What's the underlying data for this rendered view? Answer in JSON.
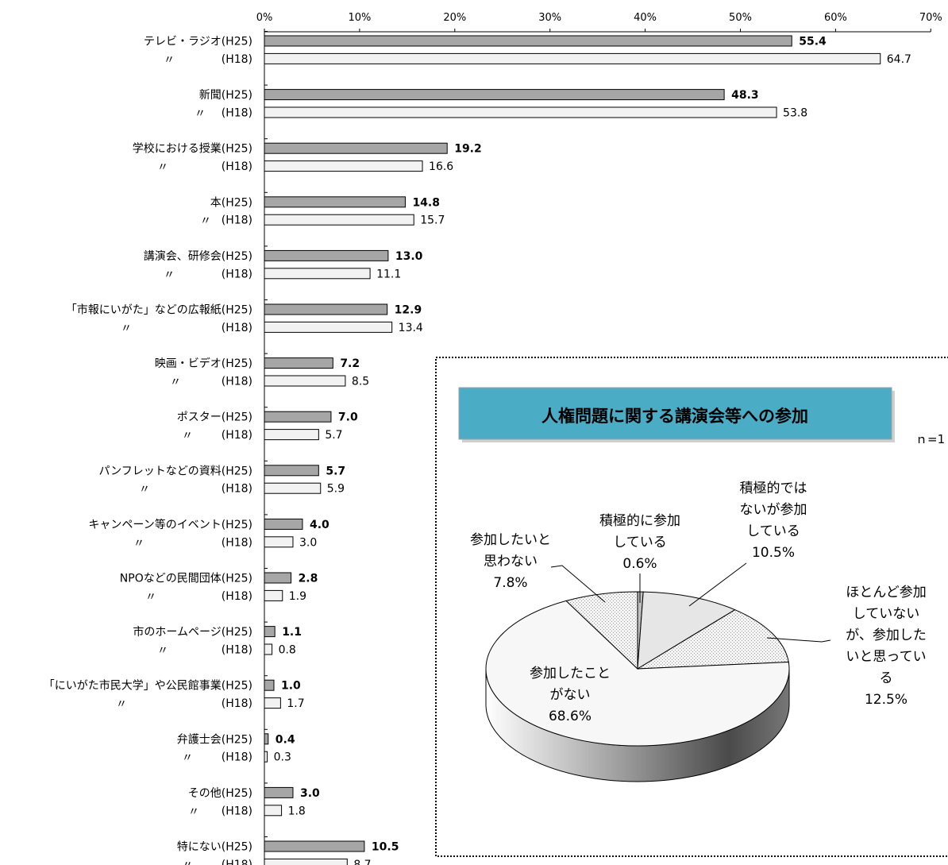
{
  "chart_data": [
    {
      "type": "bar",
      "orientation": "horizontal",
      "xlim": [
        0,
        70
      ],
      "x_ticks": [
        "0%",
        "10%",
        "20%",
        "30%",
        "40%",
        "50%",
        "60%",
        "70%"
      ],
      "grid": false,
      "categories": [
        "テレビ・ラジオ",
        "新聞",
        "学校における授業",
        "本",
        "講演会、研修会",
        "「市報にいがた」などの広報紙",
        "映画・ビデオ",
        "ポスター",
        "パンフレットなどの資料",
        "キャンペーン等のイベント",
        "NPOなどの民間団体",
        "市のホームページ",
        "「にいがた市民大学」や公民館事業",
        "弁護士会",
        "その他",
        "特にない"
      ],
      "ditto": "〃",
      "series": [
        {
          "name": "(H25)",
          "color": "#a6a6a6",
          "values": [
            55.4,
            48.3,
            19.2,
            14.8,
            13.0,
            12.9,
            7.2,
            7.0,
            5.7,
            4.0,
            2.8,
            1.1,
            1.0,
            0.4,
            3.0,
            10.5
          ],
          "labels": [
            "55.4",
            "48.3",
            "19.2",
            "14.8",
            "13.0",
            "12.9",
            "7.2",
            "7.0",
            "5.7",
            "4.0",
            "2.8",
            "1.1",
            "1.0",
            "0.4",
            "3.0",
            "10.5"
          ]
        },
        {
          "name": "(H18)",
          "color": "#f2f2f2",
          "values": [
            64.7,
            53.8,
            16.6,
            15.7,
            11.1,
            13.4,
            8.5,
            5.7,
            5.9,
            3.0,
            1.9,
            0.8,
            1.7,
            0.3,
            1.8,
            8.7
          ],
          "labels": [
            "64.7",
            "53.8",
            "16.6",
            "15.7",
            "11.1",
            "13.4",
            "8.5",
            "5.7",
            "5.9",
            "3.0",
            "1.9",
            "0.8",
            "1.7",
            "0.3",
            "1.8",
            "8.7"
          ]
        }
      ]
    },
    {
      "type": "pie",
      "title": "人権問題に関する講演会等への参加",
      "n_label": "ｎ=1",
      "slices": [
        {
          "label": "積極的に参加\nしている",
          "value": 0.6,
          "value_label": "0.6%",
          "color": "#bfbfbf",
          "pattern": "solid"
        },
        {
          "label": "積極的では\nないが参加\nしている",
          "value": 10.5,
          "value_label": "10.5%",
          "color": "#e6e6e6",
          "pattern": "solid"
        },
        {
          "label": "ほとんど参加\nしていない\nが、参加した\nいと思ってい\nる",
          "value": 12.5,
          "value_label": "12.5%",
          "color": "#f0f0f0",
          "pattern": "dots"
        },
        {
          "label": "参加したこと\nがない",
          "value": 68.6,
          "value_label": "68.6%",
          "color": "#f7f7f7",
          "pattern": "solid"
        },
        {
          "label": "参加したいと\n思わない",
          "value": 7.8,
          "value_label": "7.8%",
          "color": "#ebebeb",
          "pattern": "dots"
        }
      ]
    }
  ]
}
